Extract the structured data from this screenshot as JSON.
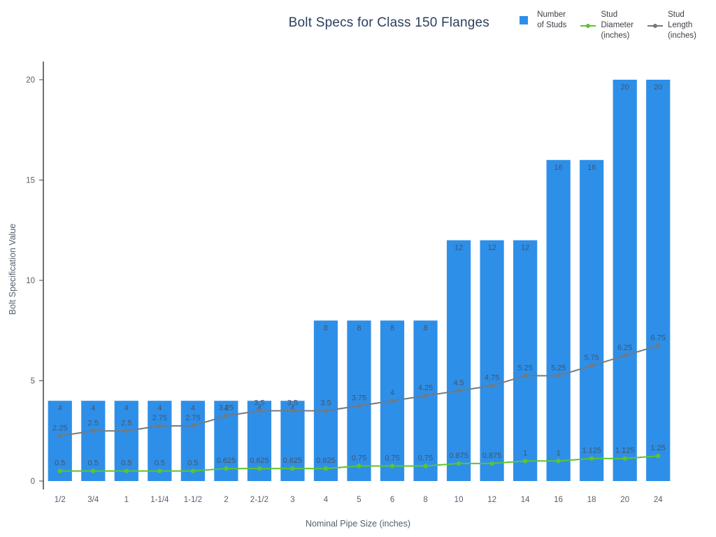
{
  "chart_data": {
    "type": "bar",
    "title": "Bolt Specs for Class 150 Flanges",
    "xlabel": "Nominal Pipe Size (inches)",
    "ylabel": "Bolt Specification Value",
    "ylim": [
      0,
      20
    ],
    "yticks": [
      0,
      5,
      10,
      15,
      20
    ],
    "grid": false,
    "legend_position": "top-right",
    "categories": [
      "1/2",
      "3/4",
      "1",
      "1-1/4",
      "1-1/2",
      "2",
      "2-1/2",
      "3",
      "4",
      "5",
      "6",
      "8",
      "10",
      "12",
      "14",
      "16",
      "18",
      "20",
      "24"
    ],
    "series": [
      {
        "name": "Number of Studs",
        "kind": "bar",
        "color": "#2E8FE8",
        "values": [
          4,
          4,
          4,
          4,
          4,
          4,
          4,
          4,
          8,
          8,
          8,
          8,
          12,
          12,
          12,
          16,
          16,
          20,
          20
        ]
      },
      {
        "name": "Stud Diameter (inches)",
        "kind": "line",
        "color": "#5CC431",
        "values": [
          0.5,
          0.5,
          0.5,
          0.5,
          0.5,
          0.625,
          0.625,
          0.625,
          0.625,
          0.75,
          0.75,
          0.75,
          0.875,
          0.875,
          1,
          1,
          1.125,
          1.125,
          1.25
        ]
      },
      {
        "name": "Stud Length (inches)",
        "kind": "line",
        "color": "#6E7B85",
        "values": [
          2.25,
          2.5,
          2.5,
          2.75,
          2.75,
          3.25,
          3.5,
          3.5,
          3.5,
          3.75,
          4,
          4.25,
          4.5,
          4.75,
          5.25,
          5.25,
          5.75,
          6.25,
          6.75
        ]
      }
    ],
    "legend": [
      {
        "label": "Number\nof Studs",
        "marker": "square",
        "color": "#2E8FE8"
      },
      {
        "label": "Stud\nDiameter\n(inches)",
        "marker": "line",
        "color": "#5CC431"
      },
      {
        "label": "Stud\nLength\n(inches)",
        "marker": "line",
        "color": "#6E7B85"
      }
    ]
  }
}
